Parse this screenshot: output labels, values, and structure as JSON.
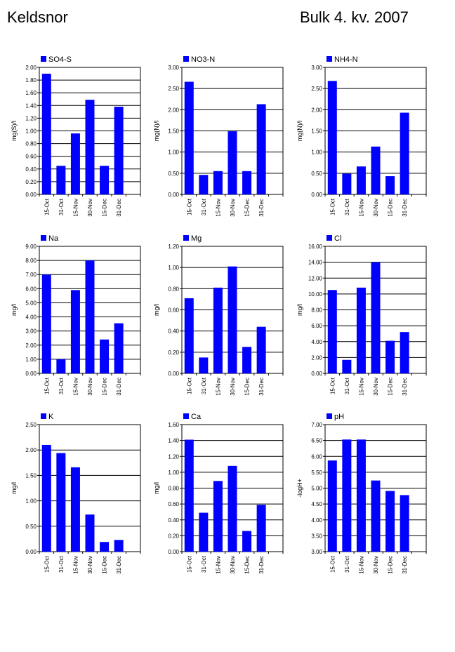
{
  "header": {
    "station": "Keldsnor",
    "period": "Bulk  4. kv. 2007"
  },
  "colors": {
    "bar": "#0000ff",
    "grid": "#000000"
  },
  "chart_data": [
    {
      "type": "bar",
      "legend": "SO4-S",
      "ylabel": "mg(S)/l",
      "categories": [
        "15-Oct",
        "31-Oct",
        "15-Nov",
        "30-Nov",
        "15-Dec",
        "31-Dec"
      ],
      "values": [
        1.9,
        0.45,
        0.96,
        1.49,
        0.45,
        1.38
      ],
      "ylim": [
        0,
        2.0
      ],
      "ticks": [
        "0.00",
        "0.20",
        "0.40",
        "0.60",
        "0.80",
        "1.00",
        "1.20",
        "1.40",
        "1.60",
        "1.80",
        "2.00"
      ]
    },
    {
      "type": "bar",
      "legend": "NO3-N",
      "ylabel": "mg(N)/l",
      "categories": [
        "15-Oct",
        "31-Oct",
        "15-Nov",
        "30-Nov",
        "15-Dec",
        "31-Dec"
      ],
      "values": [
        2.66,
        0.46,
        0.55,
        1.49,
        0.55,
        2.13
      ],
      "ylim": [
        0,
        3.0
      ],
      "ticks": [
        "0.00",
        "0.50",
        "1.00",
        "1.50",
        "2.00",
        "2.50",
        "3.00"
      ]
    },
    {
      "type": "bar",
      "legend": "NH4-N",
      "ylabel": "mg(N)/l",
      "categories": [
        "15-Oct",
        "31-Oct",
        "15-Nov",
        "30-Nov",
        "15-Dec",
        "31-Dec"
      ],
      "values": [
        2.68,
        0.49,
        0.66,
        1.13,
        0.43,
        1.93
      ],
      "ylim": [
        0,
        3.0
      ],
      "ticks": [
        "0.00",
        "0.50",
        "1.00",
        "1.50",
        "2.00",
        "2.50",
        "3.00"
      ]
    },
    {
      "type": "bar",
      "legend": "Na",
      "ylabel": "mg/l",
      "categories": [
        "15-Oct",
        "31-Oct",
        "15-Nov",
        "30-Nov",
        "15-Dec",
        "31-Dec"
      ],
      "values": [
        7.0,
        1.0,
        5.9,
        8.0,
        2.4,
        3.55
      ],
      "ylim": [
        0,
        9.0
      ],
      "ticks": [
        "0.00",
        "1.00",
        "2.00",
        "3.00",
        "4.00",
        "5.00",
        "6.00",
        "7.00",
        "8.00",
        "9.00"
      ]
    },
    {
      "type": "bar",
      "legend": "Mg",
      "ylabel": "mg/l",
      "categories": [
        "15-Oct",
        "31-Oct",
        "15-Nov",
        "30-Nov",
        "15-Dec",
        "31-Dec"
      ],
      "values": [
        0.71,
        0.15,
        0.81,
        1.01,
        0.25,
        0.44
      ],
      "ylim": [
        0,
        1.2
      ],
      "ticks": [
        "0.00",
        "0.20",
        "0.40",
        "0.60",
        "0.80",
        "1.00",
        "1.20"
      ]
    },
    {
      "type": "bar",
      "legend": "Cl",
      "ylabel": "mg/l",
      "categories": [
        "15-Oct",
        "31-Oct",
        "15-Nov",
        "30-Nov",
        "15-Dec",
        "31-Dec"
      ],
      "values": [
        10.5,
        1.7,
        10.8,
        14.0,
        4.1,
        5.2
      ],
      "ylim": [
        0,
        16.0
      ],
      "ticks": [
        "0.00",
        "2.00",
        "4.00",
        "6.00",
        "8.00",
        "10.00",
        "12.00",
        "14.00",
        "16.00"
      ]
    },
    {
      "type": "bar",
      "legend": "K",
      "ylabel": "mg/l",
      "categories": [
        "15-Oct",
        "31-Oct",
        "15-Nov",
        "30-Nov",
        "15-Dec",
        "31-Dec"
      ],
      "values": [
        2.1,
        1.94,
        1.66,
        0.73,
        0.19,
        0.23
      ],
      "ylim": [
        0,
        2.5
      ],
      "ticks": [
        "0.00",
        "0.50",
        "1.00",
        "1.50",
        "2.00",
        "2.50"
      ]
    },
    {
      "type": "bar",
      "legend": "Ca",
      "ylabel": "mg/l",
      "categories": [
        "15-Oct",
        "31-Oct",
        "15-Nov",
        "30-Nov",
        "15-Dec",
        "31-Dec"
      ],
      "values": [
        1.41,
        0.49,
        0.89,
        1.08,
        0.26,
        0.59
      ],
      "ylim": [
        0,
        1.6
      ],
      "ticks": [
        "0.00",
        "0.20",
        "0.40",
        "0.60",
        "0.80",
        "1.00",
        "1.20",
        "1.40",
        "1.60"
      ]
    },
    {
      "type": "bar",
      "legend": "pH",
      "ylabel": "-logH+",
      "categories": [
        "15-Oct",
        "31-Oct",
        "15-Nov",
        "30-Nov",
        "15-Dec",
        "31-Dec"
      ],
      "values": [
        5.87,
        6.53,
        6.53,
        5.24,
        4.91,
        4.78
      ],
      "ylim": [
        3.0,
        7.0
      ],
      "ticks": [
        "3.00",
        "3.50",
        "4.00",
        "4.50",
        "5.00",
        "5.50",
        "6.00",
        "6.50",
        "7.00"
      ]
    }
  ]
}
